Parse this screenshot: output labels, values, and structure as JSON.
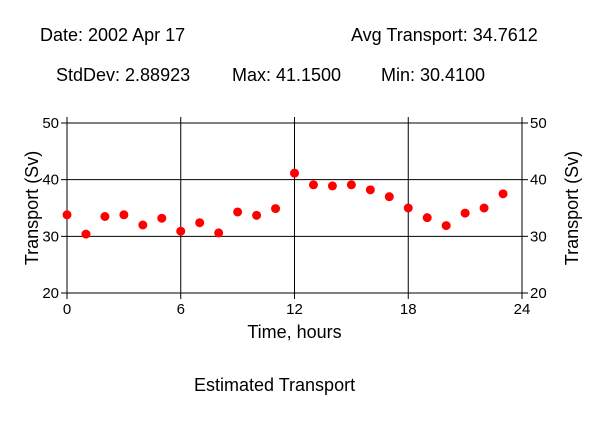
{
  "header": {
    "date": "Date: 2002 Apr 17",
    "avg": "Avg Transport: 34.7612",
    "stddev": "StdDev: 2.88923",
    "max": "Max: 41.1500",
    "min": "Min: 30.4100"
  },
  "footer": {
    "caption": "Estimated Transport"
  },
  "chart_data": {
    "type": "scatter",
    "xlabel": "Time, hours",
    "ylabel": "Transport (Sv)",
    "xlim": [
      0,
      24
    ],
    "ylim": [
      20,
      50
    ],
    "xticks": [
      0,
      6,
      12,
      18,
      24
    ],
    "yticks": [
      20,
      30,
      40,
      50
    ],
    "grid": true,
    "marker_color": "#ff0000",
    "series": [
      {
        "x": [
          0,
          1,
          2,
          3,
          4,
          5,
          6,
          7,
          8,
          9,
          10,
          11,
          12,
          13,
          14,
          15,
          16,
          17,
          18,
          19,
          20,
          21,
          22,
          23
        ],
        "y": [
          33.8,
          30.4,
          33.5,
          33.8,
          32.0,
          33.2,
          30.9,
          32.4,
          30.6,
          34.3,
          33.7,
          34.9,
          41.15,
          39.1,
          38.9,
          39.1,
          38.2,
          37.0,
          35.0,
          33.3,
          31.9,
          34.1,
          35.0,
          37.5
        ]
      }
    ]
  }
}
